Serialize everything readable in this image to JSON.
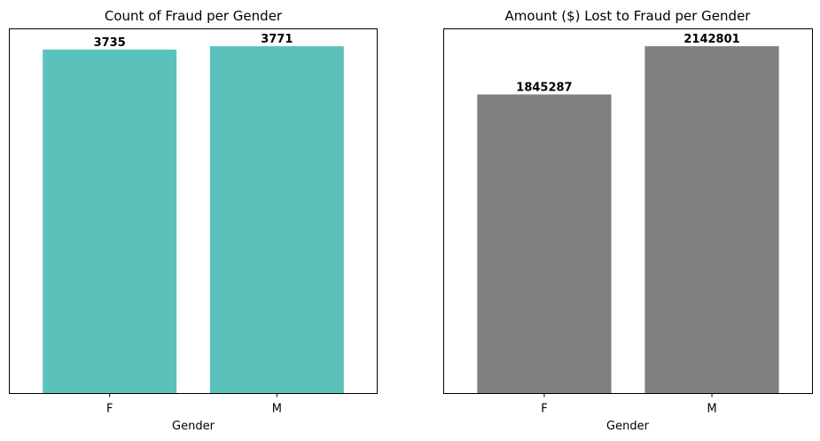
{
  "chart_data": [
    {
      "type": "bar",
      "title": "Count of Fraud per Gender",
      "xlabel": "Gender",
      "ylabel": "",
      "categories": [
        "F",
        "M"
      ],
      "values": [
        3735,
        3771
      ],
      "data_labels": [
        "3735",
        "3771"
      ],
      "ylim": [
        0,
        3960
      ],
      "bar_color": "#5ac1bb",
      "grid": false,
      "y_ticks_visible": false
    },
    {
      "type": "bar",
      "title": "Amount ($) Lost to Fraud per Gender",
      "xlabel": "Gender",
      "ylabel": "",
      "categories": [
        "F",
        "M"
      ],
      "values": [
        1845287,
        2142801
      ],
      "data_labels": [
        "1845287",
        "2142801"
      ],
      "ylim": [
        0,
        2250000
      ],
      "bar_color": "#808080",
      "grid": false,
      "y_ticks_visible": false
    }
  ]
}
